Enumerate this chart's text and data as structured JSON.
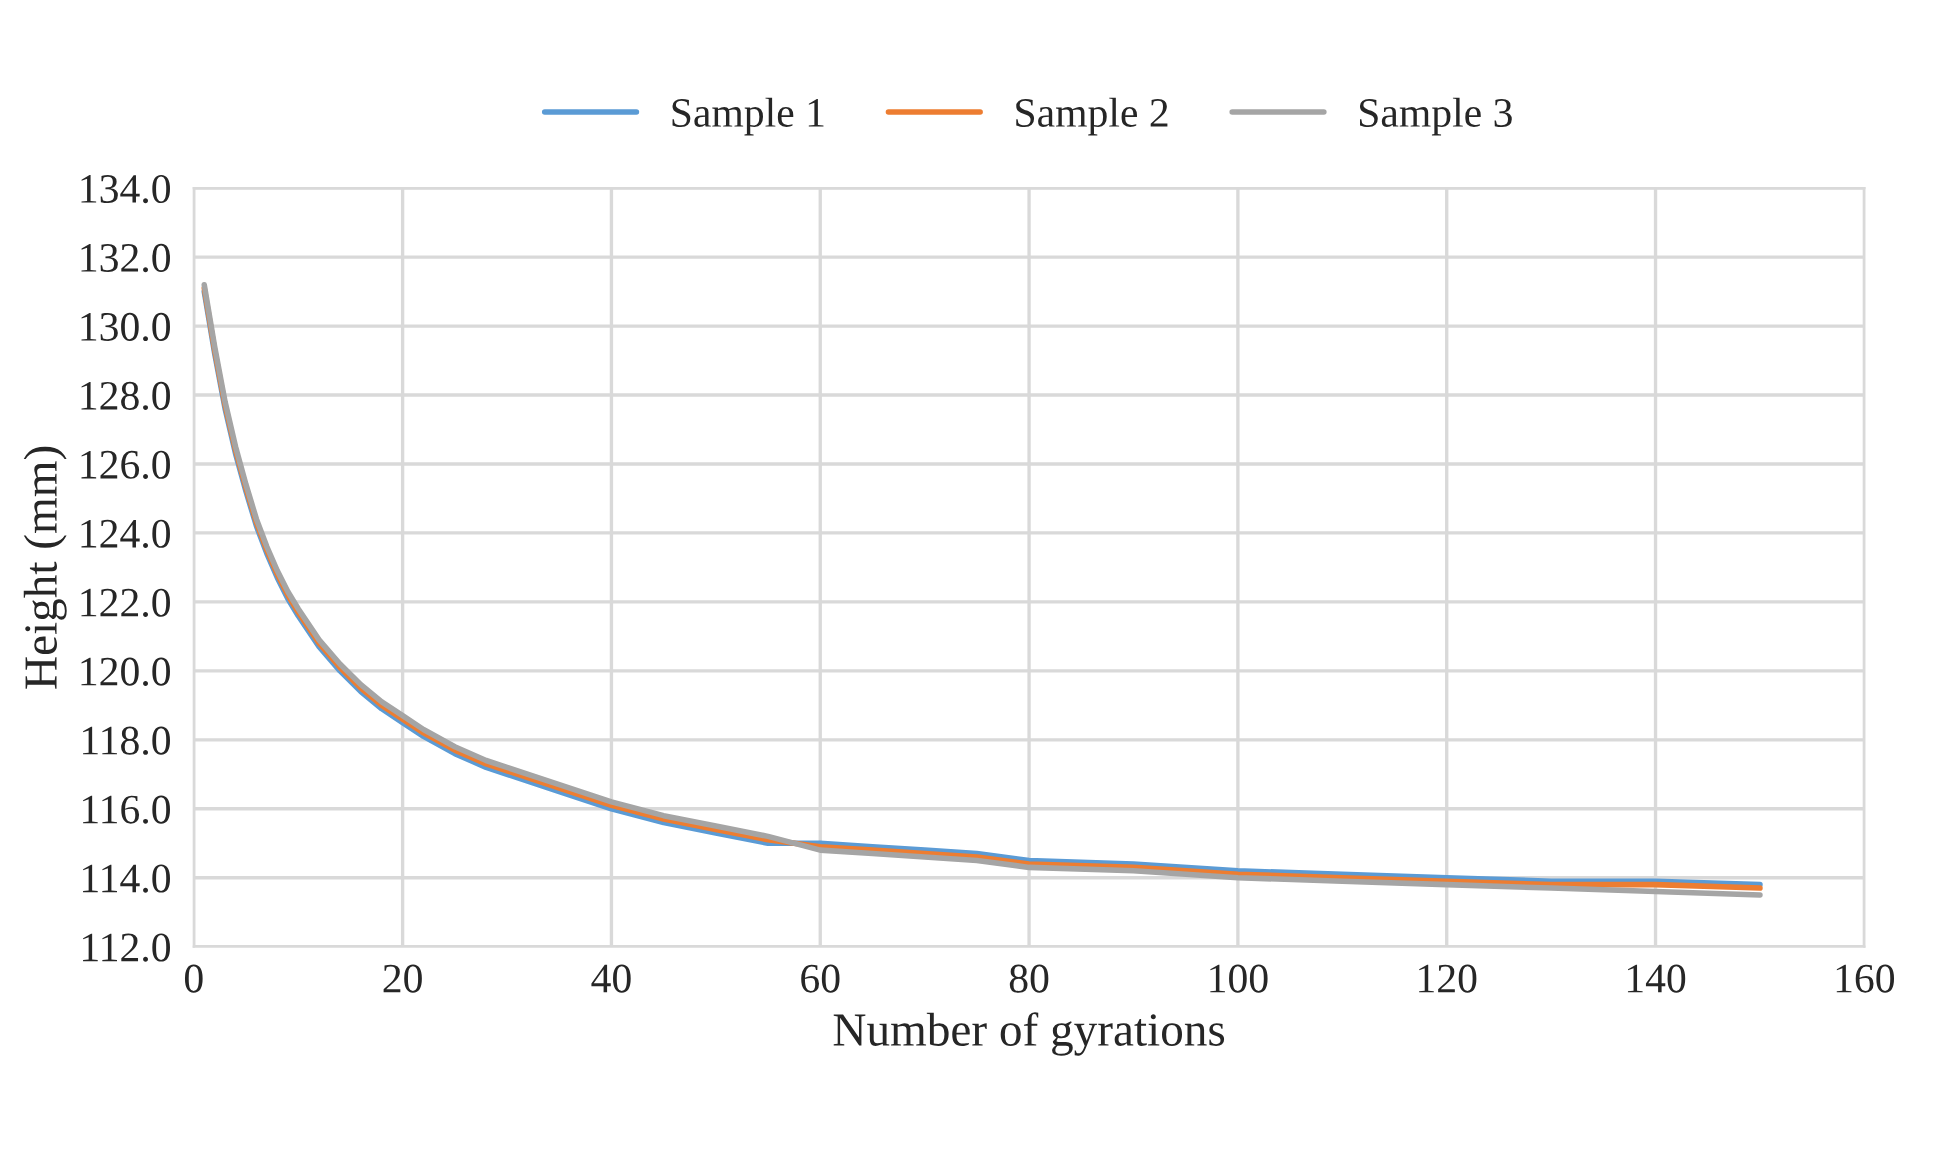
{
  "chart_data": {
    "type": "line",
    "xlabel": "Number of gyrations",
    "ylabel": "Height (mm)",
    "x": [
      1,
      2,
      3,
      4,
      5,
      6,
      7,
      8,
      9,
      10,
      12,
      14,
      16,
      18,
      20,
      22,
      25,
      28,
      30,
      35,
      40,
      45,
      50,
      55,
      60,
      65,
      70,
      75,
      80,
      90,
      100,
      110,
      120,
      130,
      140,
      150
    ],
    "series": [
      {
        "name": "Sample 1",
        "color": "#5b9bd5",
        "values": [
          131.0,
          129.2,
          127.6,
          126.3,
          125.2,
          124.2,
          123.4,
          122.7,
          122.1,
          121.6,
          120.7,
          120.0,
          119.4,
          118.9,
          118.5,
          118.1,
          117.6,
          117.2,
          117.0,
          116.5,
          116.0,
          115.6,
          115.3,
          115.0,
          115.0,
          114.9,
          114.8,
          114.7,
          114.5,
          114.4,
          114.2,
          114.1,
          114.0,
          113.9,
          113.9,
          113.8
        ]
      },
      {
        "name": "Sample 2",
        "color": "#ed7d31",
        "values": [
          131.1,
          129.3,
          127.7,
          126.4,
          125.3,
          124.3,
          123.5,
          122.8,
          122.2,
          121.7,
          120.8,
          120.1,
          119.5,
          119.0,
          118.6,
          118.2,
          117.7,
          117.3,
          117.1,
          116.6,
          116.1,
          115.7,
          115.4,
          115.1,
          114.9,
          114.8,
          114.7,
          114.6,
          114.4,
          114.3,
          114.1,
          114.0,
          113.9,
          113.8,
          113.8,
          113.7
        ]
      },
      {
        "name": "Sample 3",
        "color": "#a5a5a5",
        "values": [
          131.2,
          129.4,
          127.8,
          126.5,
          125.4,
          124.4,
          123.6,
          122.9,
          122.3,
          121.8,
          120.9,
          120.2,
          119.6,
          119.1,
          118.7,
          118.3,
          117.8,
          117.4,
          117.2,
          116.7,
          116.2,
          115.8,
          115.5,
          115.2,
          114.8,
          114.7,
          114.6,
          114.5,
          114.3,
          114.2,
          114.0,
          113.9,
          113.8,
          113.7,
          113.6,
          113.5
        ]
      }
    ],
    "xlim": [
      0,
      160
    ],
    "xticks": [
      0,
      20,
      40,
      60,
      80,
      100,
      120,
      140,
      160
    ],
    "ylim": [
      112,
      134
    ],
    "yticks": [
      {
        "value": 112,
        "label": "112.0"
      },
      {
        "value": 114,
        "label": "114.0"
      },
      {
        "value": 116,
        "label": "116.0"
      },
      {
        "value": 118,
        "label": "118.0"
      },
      {
        "value": 120,
        "label": "120.0"
      },
      {
        "value": 122,
        "label": "122.0"
      },
      {
        "value": 124,
        "label": "124.0"
      },
      {
        "value": 126,
        "label": "126.0"
      },
      {
        "value": 128,
        "label": "128.0"
      },
      {
        "value": 130,
        "label": "130.0"
      },
      {
        "value": 132,
        "label": "132.0"
      },
      {
        "value": 134,
        "label": "134.0"
      }
    ],
    "grid": true,
    "legend": "top",
    "line_style": "solid"
  }
}
